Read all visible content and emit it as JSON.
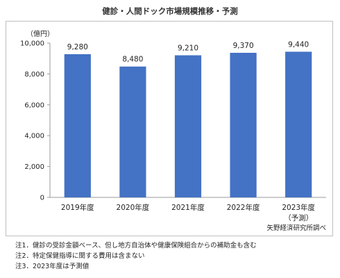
{
  "chart_data": {
    "type": "bar",
    "title": "健診・人間ドック市場規模推移・予測",
    "unit_label": "（億円）",
    "categories": [
      "2019年度",
      "2020年度",
      "2021年度",
      "2022年度",
      "2023年度"
    ],
    "category_sublabels": [
      "",
      "",
      "",
      "",
      "（予測）"
    ],
    "values": [
      9280,
      8480,
      9210,
      9370,
      9440
    ],
    "value_labels": [
      "9,280",
      "8,480",
      "9,210",
      "9,370",
      "9,440"
    ],
    "ylim": [
      0,
      10000
    ],
    "yticks": [
      0,
      2000,
      4000,
      6000,
      8000,
      10000
    ],
    "ytick_labels": [
      "0",
      "2,000",
      "4,000",
      "6,000",
      "8,000",
      "10,000"
    ],
    "grid": false,
    "bar_color": "#4472C4",
    "source": "矢野経済研究所調べ"
  },
  "notes": [
    "注1．健診の受診金額ベース、但し地方自治体や健康保険組合からの補助金も含む",
    "注2．特定保健指導に関する費用は含まない",
    "注3．2023年度は予測値"
  ]
}
